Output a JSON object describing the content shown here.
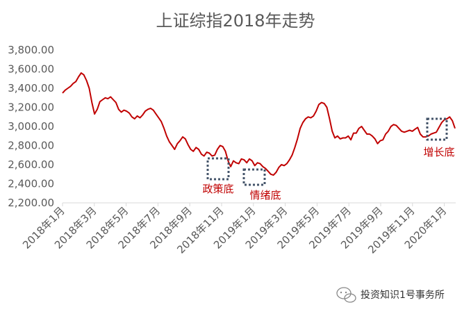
{
  "chart_data": {
    "type": "line",
    "title": "上证综指2018年走势",
    "xlabel": "",
    "ylabel": "",
    "ylim": [
      2200,
      3800
    ],
    "yticks": [
      "2,200.00",
      "2,400.00",
      "2,600.00",
      "2,800.00",
      "3,000.00",
      "3,200.00",
      "3,400.00",
      "3,600.00",
      "3,800.00"
    ],
    "ytick_values": [
      2200,
      2400,
      2600,
      2800,
      3000,
      3200,
      3400,
      3600,
      3800
    ],
    "xticks": [
      "2018年1月",
      "2018年3月",
      "2018年5月",
      "2018年7月",
      "2018年9月",
      "2018年11月",
      "2019年1月",
      "2019年3月",
      "2019年5月",
      "2019年7月",
      "2019年9月",
      "2019年11月",
      "2020年1月"
    ],
    "x_range": [
      "2018-01",
      "2020-01"
    ],
    "grid": false,
    "line_color": "#c00000",
    "series": [
      {
        "values": [
          3350,
          3380,
          3400,
          3420,
          3450,
          3470,
          3520,
          3560,
          3540,
          3480,
          3400,
          3250,
          3130,
          3180,
          3260,
          3280,
          3300,
          3290,
          3310,
          3280,
          3250,
          3180,
          3150,
          3170,
          3160,
          3140,
          3100,
          3080,
          3110,
          3090,
          3120,
          3160,
          3180,
          3190,
          3170,
          3130,
          3090,
          3050,
          2980,
          2900,
          2840,
          2800,
          2760,
          2820,
          2850,
          2890,
          2870,
          2810,
          2760,
          2740,
          2780,
          2760,
          2710,
          2690,
          2730,
          2720,
          2690,
          2700,
          2760,
          2800,
          2790,
          2740,
          2640,
          2580,
          2640,
          2620,
          2610,
          2660,
          2650,
          2620,
          2660,
          2640,
          2590,
          2620,
          2610,
          2580,
          2560,
          2530,
          2500,
          2490,
          2520,
          2570,
          2600,
          2590,
          2610,
          2650,
          2700,
          2780,
          2870,
          2980,
          3040,
          3080,
          3100,
          3090,
          3110,
          3160,
          3230,
          3250,
          3240,
          3200,
          3080,
          2950,
          2880,
          2900,
          2870,
          2880,
          2880,
          2900,
          2860,
          2930,
          2930,
          2980,
          3000,
          2960,
          2920,
          2920,
          2900,
          2870,
          2820,
          2850,
          2860,
          2920,
          2950,
          3000,
          3020,
          3010,
          2980,
          2950,
          2940,
          2950,
          2960,
          2950,
          2970,
          2990,
          2920,
          2890,
          2890,
          2900,
          2920,
          2930,
          2940,
          2990,
          3040,
          3070,
          3080,
          3100,
          3060,
          2980
        ]
      }
    ],
    "annotations": [
      {
        "label": "政策底",
        "at": "2018年11月"
      },
      {
        "label": "情绪底",
        "at": "2019年1月"
      },
      {
        "label": "增长底",
        "at": "2019年12月"
      }
    ]
  },
  "watermark": {
    "text": "投资知识1号事务所",
    "icon": "wechat-official-account-icon"
  }
}
